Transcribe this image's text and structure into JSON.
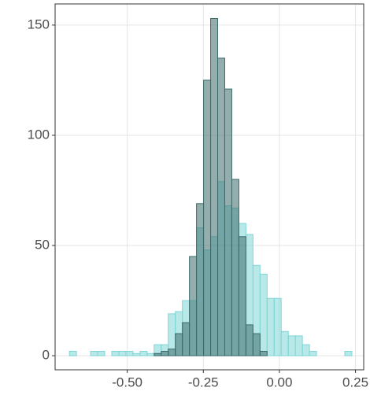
{
  "chart_data": {
    "type": "histogram",
    "bins": [
      -0.69,
      -0.6668,
      -0.6436,
      -0.6204,
      -0.5972,
      -0.574,
      -0.5508,
      -0.5276,
      -0.5044,
      -0.4812,
      -0.458,
      -0.4348,
      -0.4116,
      -0.3884,
      -0.3652,
      -0.342,
      -0.3188,
      -0.2956,
      -0.2724,
      -0.2492,
      -0.226,
      -0.2028,
      -0.1796,
      -0.1564,
      -0.1332,
      -0.11,
      -0.0868,
      -0.0636,
      -0.0404,
      -0.0172,
      0.006,
      0.0292,
      0.0524,
      0.0756,
      0.0988,
      0.122,
      0.1452,
      0.1684,
      0.1916,
      0.2148,
      0.238
    ],
    "series": [
      {
        "color": "#7fd6d6",
        "values": [
          2,
          0,
          0,
          2,
          2,
          0,
          2,
          2,
          2,
          1,
          2,
          1,
          5,
          5,
          19,
          20,
          25,
          25,
          58,
          48,
          54,
          79,
          68,
          67,
          60,
          55,
          41,
          37,
          26,
          26,
          11,
          9,
          9,
          5,
          2,
          0,
          0,
          0,
          0,
          2
        ]
      },
      {
        "color": "#3d6b6b",
        "values": [
          0,
          0,
          0,
          0,
          0,
          0,
          0,
          0,
          0,
          0,
          0,
          0,
          1,
          2,
          3,
          10,
          15,
          45,
          69,
          125,
          153,
          135,
          121,
          80,
          54,
          14,
          10,
          2,
          0,
          0,
          0,
          0,
          0,
          0,
          0,
          0,
          0,
          0,
          0,
          0
        ]
      }
    ],
    "xlim": [
      -0.737,
      0.277
    ],
    "ylim": [
      -6.4,
      159.6
    ],
    "xticks": [
      {
        "value": -0.5,
        "label": "-0.50"
      },
      {
        "value": -0.25,
        "label": "-0.25"
      },
      {
        "value": 0,
        "label": "0.00"
      },
      {
        "value": 0.25,
        "label": "0.25"
      }
    ],
    "yticks": [
      0,
      50,
      100,
      150
    ],
    "grid": true
  }
}
